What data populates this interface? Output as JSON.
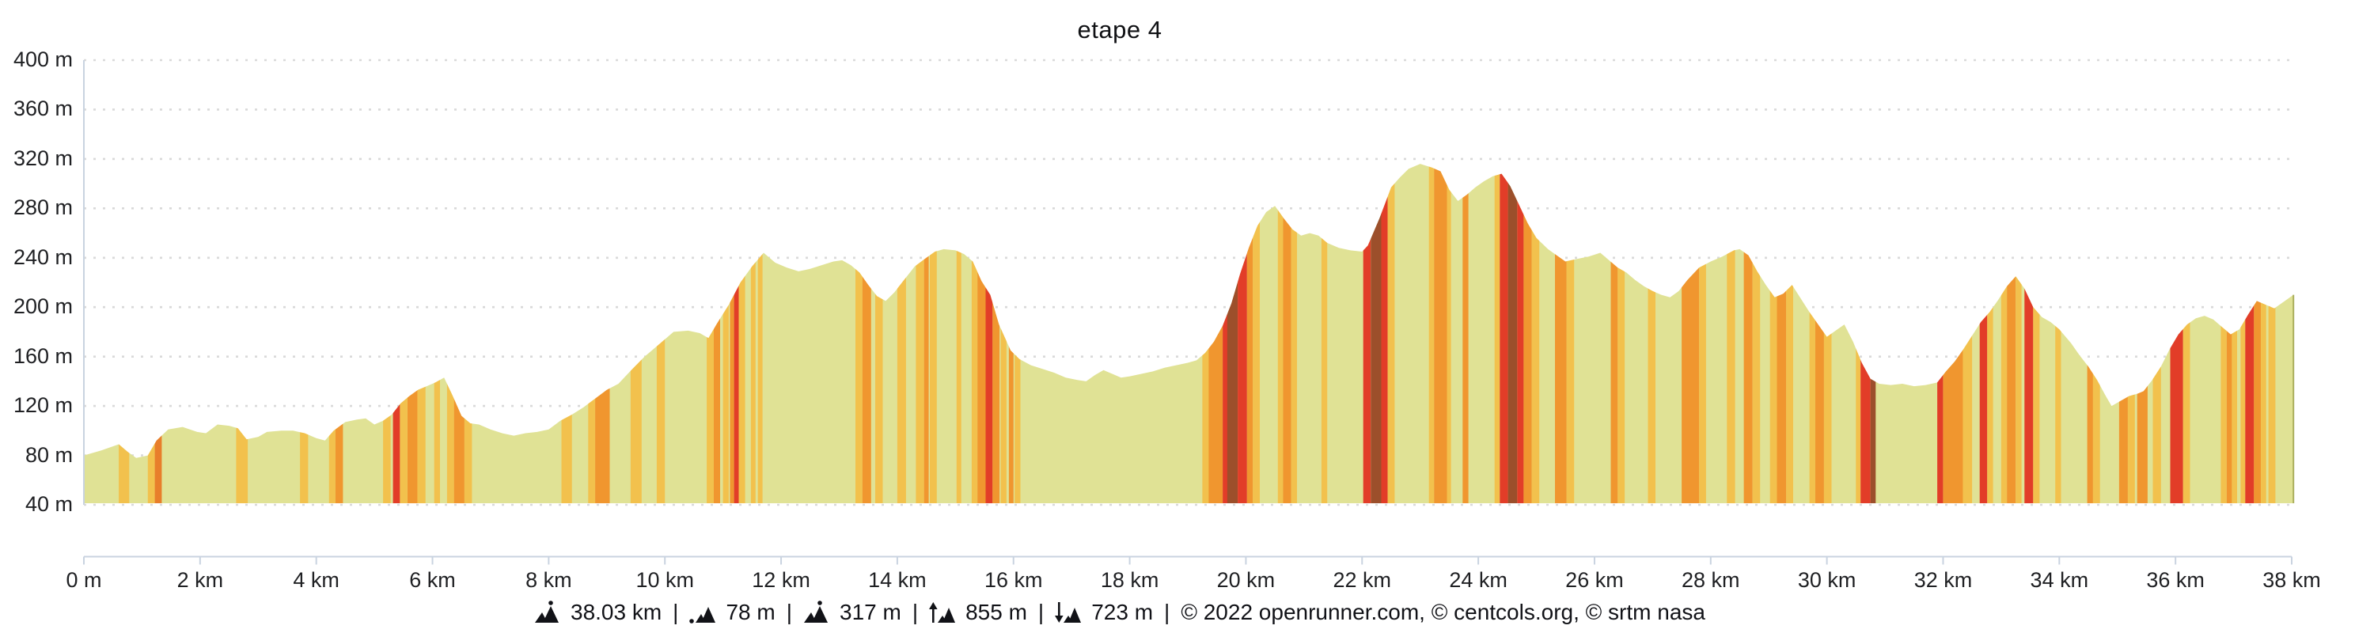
{
  "title": "etape 4",
  "footer": {
    "items": [
      {
        "icon": "route-distance-icon",
        "value": "38.03 km"
      },
      {
        "icon": "min-altitude-icon",
        "value": "78 m"
      },
      {
        "icon": "max-altitude-icon",
        "value": "317 m"
      },
      {
        "icon": "total-ascent-icon",
        "value": "855 m"
      },
      {
        "icon": "total-descent-icon",
        "value": "723 m"
      }
    ],
    "separator": "|",
    "credits": "© 2022 openrunner.com, © centcols.org, © srtm nasa"
  },
  "chart_data": {
    "type": "area",
    "title": "etape 4",
    "x_unit": "km",
    "y_unit": "m",
    "xlim": [
      0,
      38.03
    ],
    "ylim": [
      40,
      400
    ],
    "grid": "horizontal-dotted",
    "legend": "none",
    "y_ticks": [
      40,
      80,
      120,
      160,
      200,
      240,
      280,
      320,
      360,
      400
    ],
    "y_tick_suffix": " m",
    "x_tick_values": [
      0,
      2,
      4,
      6,
      8,
      10,
      12,
      14,
      16,
      18,
      20,
      22,
      24,
      26,
      28,
      30,
      32,
      34,
      36,
      38
    ],
    "x_tick_labels": [
      "0 m",
      "2 km",
      "4 km",
      "6 km",
      "8 km",
      "10 km",
      "12 km",
      "14 km",
      "16 km",
      "18 km",
      "20 km",
      "22 km",
      "24 km",
      "26 km",
      "28 km",
      "30 km",
      "32 km",
      "34 km",
      "36 km",
      "38 km"
    ],
    "stats": {
      "distance_km": 38.03,
      "min_m": 78,
      "max_m": 317,
      "ascent_m": 855,
      "descent_m": 723
    },
    "colors": {
      "base": "#e0e295",
      "amber": "#f2c14d",
      "orange": "#f0962f",
      "deeporange": "#e87e2b",
      "red": "#e23d28",
      "brown": "#9c4f2b",
      "axis": "#c9d3e0",
      "grid": "#d9d9d9",
      "edge": "#a9ad5d",
      "text": "#1f2023"
    },
    "profile": [
      [
        0,
        80
      ],
      [
        0.3,
        84
      ],
      [
        0.6,
        89
      ],
      [
        0.75,
        83
      ],
      [
        0.9,
        78
      ],
      [
        1.1,
        80
      ],
      [
        1.25,
        92
      ],
      [
        1.45,
        101
      ],
      [
        1.7,
        103
      ],
      [
        1.95,
        99
      ],
      [
        2.1,
        98
      ],
      [
        2.3,
        105
      ],
      [
        2.5,
        104
      ],
      [
        2.65,
        102
      ],
      [
        2.8,
        93
      ],
      [
        3.0,
        95
      ],
      [
        3.15,
        99
      ],
      [
        3.4,
        100
      ],
      [
        3.6,
        100
      ],
      [
        3.8,
        98
      ],
      [
        4.0,
        94
      ],
      [
        4.15,
        92
      ],
      [
        4.3,
        100
      ],
      [
        4.5,
        107
      ],
      [
        4.7,
        109
      ],
      [
        4.85,
        110
      ],
      [
        5.0,
        105
      ],
      [
        5.15,
        108
      ],
      [
        5.3,
        113
      ],
      [
        5.45,
        122
      ],
      [
        5.6,
        128
      ],
      [
        5.75,
        133
      ],
      [
        5.9,
        136
      ],
      [
        6.05,
        139
      ],
      [
        6.2,
        143
      ],
      [
        6.35,
        128
      ],
      [
        6.5,
        112
      ],
      [
        6.65,
        106
      ],
      [
        6.8,
        105
      ],
      [
        7.0,
        101
      ],
      [
        7.2,
        98
      ],
      [
        7.4,
        96
      ],
      [
        7.6,
        98
      ],
      [
        7.8,
        99
      ],
      [
        8.0,
        101
      ],
      [
        8.2,
        108
      ],
      [
        8.4,
        113
      ],
      [
        8.6,
        119
      ],
      [
        8.8,
        126
      ],
      [
        9.0,
        133
      ],
      [
        9.2,
        138
      ],
      [
        9.4,
        148
      ],
      [
        9.65,
        160
      ],
      [
        9.9,
        170
      ],
      [
        10.15,
        180
      ],
      [
        10.4,
        181
      ],
      [
        10.6,
        179
      ],
      [
        10.75,
        175
      ],
      [
        10.9,
        187
      ],
      [
        11.1,
        202
      ],
      [
        11.3,
        220
      ],
      [
        11.5,
        233
      ],
      [
        11.7,
        244
      ],
      [
        11.9,
        236
      ],
      [
        12.1,
        232
      ],
      [
        12.3,
        229
      ],
      [
        12.5,
        231
      ],
      [
        12.7,
        234
      ],
      [
        12.9,
        237
      ],
      [
        13.05,
        238
      ],
      [
        13.2,
        234
      ],
      [
        13.35,
        228
      ],
      [
        13.5,
        218
      ],
      [
        13.65,
        209
      ],
      [
        13.8,
        205
      ],
      [
        13.95,
        212
      ],
      [
        14.1,
        221
      ],
      [
        14.3,
        233
      ],
      [
        14.5,
        240
      ],
      [
        14.65,
        245
      ],
      [
        14.8,
        247
      ],
      [
        15.0,
        246
      ],
      [
        15.15,
        243
      ],
      [
        15.3,
        237
      ],
      [
        15.45,
        221
      ],
      [
        15.6,
        210
      ],
      [
        15.75,
        186
      ],
      [
        15.95,
        165
      ],
      [
        16.1,
        158
      ],
      [
        16.3,
        153
      ],
      [
        16.5,
        150
      ],
      [
        16.7,
        147
      ],
      [
        16.9,
        143
      ],
      [
        17.1,
        141
      ],
      [
        17.25,
        140
      ],
      [
        17.4,
        145
      ],
      [
        17.55,
        149
      ],
      [
        17.7,
        146
      ],
      [
        17.85,
        143
      ],
      [
        18.0,
        144
      ],
      [
        18.2,
        146
      ],
      [
        18.4,
        148
      ],
      [
        18.6,
        151
      ],
      [
        18.8,
        153
      ],
      [
        19.0,
        155
      ],
      [
        19.15,
        157
      ],
      [
        19.3,
        163
      ],
      [
        19.45,
        172
      ],
      [
        19.6,
        185
      ],
      [
        19.75,
        203
      ],
      [
        19.9,
        227
      ],
      [
        20.05,
        248
      ],
      [
        20.2,
        266
      ],
      [
        20.35,
        277
      ],
      [
        20.5,
        282
      ],
      [
        20.65,
        272
      ],
      [
        20.8,
        263
      ],
      [
        20.95,
        258
      ],
      [
        21.1,
        260
      ],
      [
        21.25,
        258
      ],
      [
        21.4,
        252
      ],
      [
        21.6,
        248
      ],
      [
        21.8,
        246
      ],
      [
        22.0,
        245
      ],
      [
        22.1,
        250
      ],
      [
        22.3,
        272
      ],
      [
        22.5,
        297
      ],
      [
        22.65,
        305
      ],
      [
        22.8,
        312
      ],
      [
        23.0,
        316
      ],
      [
        23.2,
        313
      ],
      [
        23.35,
        310
      ],
      [
        23.5,
        295
      ],
      [
        23.65,
        286
      ],
      [
        23.8,
        291
      ],
      [
        23.95,
        297
      ],
      [
        24.1,
        302
      ],
      [
        24.25,
        306
      ],
      [
        24.4,
        308
      ],
      [
        24.55,
        298
      ],
      [
        24.7,
        283
      ],
      [
        24.85,
        268
      ],
      [
        25.0,
        256
      ],
      [
        25.2,
        247
      ],
      [
        25.35,
        242
      ],
      [
        25.5,
        237
      ],
      [
        25.7,
        239
      ],
      [
        25.9,
        241
      ],
      [
        26.1,
        244
      ],
      [
        26.25,
        238
      ],
      [
        26.4,
        232
      ],
      [
        26.55,
        228
      ],
      [
        26.7,
        222
      ],
      [
        26.85,
        217
      ],
      [
        27.0,
        213
      ],
      [
        27.15,
        210
      ],
      [
        27.3,
        208
      ],
      [
        27.45,
        213
      ],
      [
        27.6,
        222
      ],
      [
        27.8,
        232
      ],
      [
        28.0,
        237
      ],
      [
        28.2,
        241
      ],
      [
        28.4,
        246
      ],
      [
        28.5,
        247
      ],
      [
        28.65,
        242
      ],
      [
        28.8,
        229
      ],
      [
        28.95,
        218
      ],
      [
        29.1,
        208
      ],
      [
        29.25,
        211
      ],
      [
        29.4,
        218
      ],
      [
        29.55,
        207
      ],
      [
        29.7,
        196
      ],
      [
        29.85,
        186
      ],
      [
        30.0,
        176
      ],
      [
        30.15,
        181
      ],
      [
        30.3,
        186
      ],
      [
        30.45,
        172
      ],
      [
        30.6,
        155
      ],
      [
        30.75,
        142
      ],
      [
        30.9,
        138
      ],
      [
        31.1,
        137
      ],
      [
        31.3,
        138
      ],
      [
        31.5,
        136
      ],
      [
        31.7,
        137
      ],
      [
        31.9,
        139
      ],
      [
        32.05,
        148
      ],
      [
        32.2,
        156
      ],
      [
        32.35,
        166
      ],
      [
        32.5,
        177
      ],
      [
        32.65,
        188
      ],
      [
        32.8,
        196
      ],
      [
        32.95,
        206
      ],
      [
        33.1,
        217
      ],
      [
        33.25,
        225
      ],
      [
        33.4,
        215
      ],
      [
        33.55,
        200
      ],
      [
        33.7,
        192
      ],
      [
        33.85,
        188
      ],
      [
        34.0,
        182
      ],
      [
        34.2,
        171
      ],
      [
        34.35,
        161
      ],
      [
        34.5,
        152
      ],
      [
        34.65,
        141
      ],
      [
        34.8,
        128
      ],
      [
        34.9,
        120
      ],
      [
        35.05,
        124
      ],
      [
        35.2,
        128
      ],
      [
        35.35,
        130
      ],
      [
        35.45,
        132
      ],
      [
        35.6,
        141
      ],
      [
        35.75,
        152
      ],
      [
        35.9,
        166
      ],
      [
        36.05,
        178
      ],
      [
        36.2,
        186
      ],
      [
        36.35,
        191
      ],
      [
        36.5,
        193
      ],
      [
        36.65,
        190
      ],
      [
        36.8,
        184
      ],
      [
        36.95,
        178
      ],
      [
        37.1,
        182
      ],
      [
        37.25,
        194
      ],
      [
        37.4,
        205
      ],
      [
        37.55,
        202
      ],
      [
        37.7,
        199
      ],
      [
        37.85,
        204
      ],
      [
        38.03,
        210
      ]
    ],
    "slope_segments": [
      [
        0.6,
        0.78,
        "amber"
      ],
      [
        1.1,
        1.22,
        "amber"
      ],
      [
        1.22,
        1.34,
        "deeporange"
      ],
      [
        2.62,
        2.82,
        "amber"
      ],
      [
        3.72,
        3.86,
        "amber"
      ],
      [
        4.22,
        4.33,
        "amber"
      ],
      [
        4.33,
        4.46,
        "orange"
      ],
      [
        5.15,
        5.28,
        "amber"
      ],
      [
        5.32,
        5.44,
        "red"
      ],
      [
        5.44,
        5.57,
        "amber"
      ],
      [
        5.57,
        5.74,
        "orange"
      ],
      [
        5.74,
        5.88,
        "amber"
      ],
      [
        6.03,
        6.13,
        "amber"
      ],
      [
        6.25,
        6.37,
        "amber"
      ],
      [
        6.37,
        6.55,
        "orange"
      ],
      [
        6.55,
        6.68,
        "amber"
      ],
      [
        8.22,
        8.4,
        "amber"
      ],
      [
        8.68,
        8.8,
        "amber"
      ],
      [
        8.8,
        9.05,
        "orange"
      ],
      [
        9.41,
        9.6,
        "amber"
      ],
      [
        9.86,
        10.0,
        "amber"
      ],
      [
        10.72,
        10.84,
        "amber"
      ],
      [
        10.84,
        10.95,
        "orange"
      ],
      [
        11.0,
        11.1,
        "amber"
      ],
      [
        11.12,
        11.19,
        "orange"
      ],
      [
        11.19,
        11.27,
        "red"
      ],
      [
        11.27,
        11.38,
        "amber"
      ],
      [
        11.48,
        11.56,
        "amber"
      ],
      [
        11.6,
        11.68,
        "amber"
      ],
      [
        13.28,
        13.4,
        "amber"
      ],
      [
        13.4,
        13.55,
        "orange"
      ],
      [
        13.62,
        13.75,
        "amber"
      ],
      [
        14.0,
        14.15,
        "amber"
      ],
      [
        14.32,
        14.46,
        "amber"
      ],
      [
        14.46,
        14.54,
        "orange"
      ],
      [
        14.56,
        14.68,
        "amber"
      ],
      [
        15.02,
        15.1,
        "amber"
      ],
      [
        15.28,
        15.38,
        "amber"
      ],
      [
        15.38,
        15.52,
        "orange"
      ],
      [
        15.52,
        15.64,
        "red"
      ],
      [
        15.64,
        15.76,
        "orange"
      ],
      [
        15.78,
        15.88,
        "amber"
      ],
      [
        15.92,
        16.0,
        "orange"
      ],
      [
        16.02,
        16.12,
        "amber"
      ],
      [
        19.25,
        19.36,
        "amber"
      ],
      [
        19.36,
        19.6,
        "orange"
      ],
      [
        19.6,
        19.68,
        "red"
      ],
      [
        19.68,
        19.86,
        "brown"
      ],
      [
        19.86,
        20.02,
        "red"
      ],
      [
        20.02,
        20.12,
        "orange"
      ],
      [
        20.12,
        20.24,
        "amber"
      ],
      [
        20.55,
        20.64,
        "amber"
      ],
      [
        20.64,
        20.78,
        "orange"
      ],
      [
        20.78,
        20.88,
        "amber"
      ],
      [
        21.3,
        21.4,
        "amber"
      ],
      [
        22.02,
        22.15,
        "red"
      ],
      [
        22.15,
        22.33,
        "brown"
      ],
      [
        22.33,
        22.44,
        "red"
      ],
      [
        22.44,
        22.56,
        "amber"
      ],
      [
        23.15,
        23.24,
        "amber"
      ],
      [
        23.24,
        23.46,
        "orange"
      ],
      [
        23.46,
        23.53,
        "amber"
      ],
      [
        23.73,
        23.83,
        "orange"
      ],
      [
        24.28,
        24.37,
        "amber"
      ],
      [
        24.37,
        24.51,
        "red"
      ],
      [
        24.51,
        24.67,
        "brown"
      ],
      [
        24.67,
        24.78,
        "red"
      ],
      [
        24.78,
        24.92,
        "orange"
      ],
      [
        24.92,
        25.05,
        "amber"
      ],
      [
        25.32,
        25.52,
        "orange"
      ],
      [
        25.52,
        25.65,
        "amber"
      ],
      [
        26.28,
        26.4,
        "orange"
      ],
      [
        26.4,
        26.52,
        "amber"
      ],
      [
        26.92,
        27.05,
        "amber"
      ],
      [
        27.5,
        27.8,
        "orange"
      ],
      [
        27.8,
        27.92,
        "amber"
      ],
      [
        28.28,
        28.42,
        "amber"
      ],
      [
        28.57,
        28.72,
        "orange"
      ],
      [
        28.72,
        28.85,
        "amber"
      ],
      [
        29.02,
        29.14,
        "amber"
      ],
      [
        29.14,
        29.3,
        "orange"
      ],
      [
        29.3,
        29.42,
        "amber"
      ],
      [
        29.7,
        29.8,
        "amber"
      ],
      [
        29.8,
        29.95,
        "orange"
      ],
      [
        29.95,
        30.08,
        "amber"
      ],
      [
        30.5,
        30.58,
        "amber"
      ],
      [
        30.58,
        30.75,
        "red"
      ],
      [
        30.75,
        30.84,
        "brown"
      ],
      [
        31.9,
        32.0,
        "red"
      ],
      [
        32.0,
        32.34,
        "orange"
      ],
      [
        32.34,
        32.5,
        "amber"
      ],
      [
        32.63,
        32.76,
        "red"
      ],
      [
        32.76,
        32.86,
        "amber"
      ],
      [
        33.0,
        33.1,
        "amber"
      ],
      [
        33.1,
        33.25,
        "orange"
      ],
      [
        33.25,
        33.35,
        "amber"
      ],
      [
        33.4,
        33.55,
        "red"
      ],
      [
        33.55,
        33.66,
        "amber"
      ],
      [
        33.93,
        34.03,
        "amber"
      ],
      [
        34.48,
        34.58,
        "orange"
      ],
      [
        34.58,
        34.7,
        "amber"
      ],
      [
        35.03,
        35.18,
        "orange"
      ],
      [
        35.18,
        35.3,
        "amber"
      ],
      [
        35.34,
        35.52,
        "orange"
      ],
      [
        35.61,
        35.75,
        "amber"
      ],
      [
        35.91,
        36.13,
        "red"
      ],
      [
        36.13,
        36.25,
        "amber"
      ],
      [
        36.78,
        36.88,
        "amber"
      ],
      [
        36.88,
        36.97,
        "orange"
      ],
      [
        36.97,
        37.06,
        "amber"
      ],
      [
        37.12,
        37.2,
        "amber"
      ],
      [
        37.2,
        37.35,
        "red"
      ],
      [
        37.35,
        37.47,
        "orange"
      ],
      [
        37.47,
        37.56,
        "amber"
      ],
      [
        37.6,
        37.72,
        "amber"
      ]
    ]
  }
}
